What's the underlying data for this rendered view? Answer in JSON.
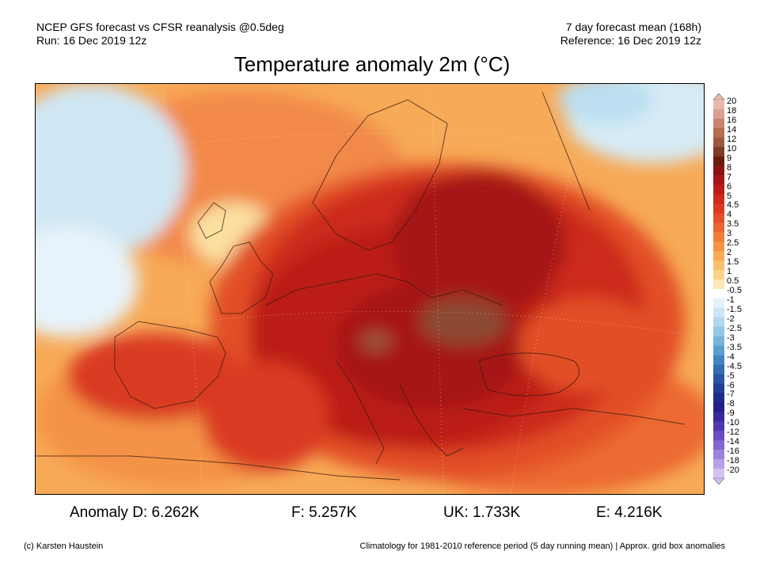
{
  "header": {
    "left_line1": "NCEP GFS forecast vs CFSR reanalysis @0.5deg",
    "left_line2": "Run: 16 Dec 2019 12z",
    "right_line1": "7 day forecast mean (168h)",
    "right_line2": "Reference: 16 Dec 2019 12z"
  },
  "title": "Temperature anomaly 2m (°C)",
  "anomalies": {
    "D": "Anomaly D: 6.262K",
    "F": "F: 5.257K",
    "UK": "UK: 1.733K",
    "E": "E: 4.216K"
  },
  "footer": {
    "credit": "(c) Karsten Haustein",
    "note": "Climatology for 1981-2010 reference period (5 day running mean) | Approx. grid box anomalies"
  },
  "legend": {
    "levels": [
      {
        "label": "20",
        "color": "#e8b8ac"
      },
      {
        "label": "18",
        "color": "#d9a090"
      },
      {
        "label": "16",
        "color": "#c8846f"
      },
      {
        "label": "14",
        "color": "#b56d54"
      },
      {
        "label": "12",
        "color": "#9c573f"
      },
      {
        "label": "10",
        "color": "#7e3d26"
      },
      {
        "label": "9",
        "color": "#6b1a10"
      },
      {
        "label": "8",
        "color": "#8c1212"
      },
      {
        "label": "7",
        "color": "#a61616"
      },
      {
        "label": "6",
        "color": "#bb1e18"
      },
      {
        "label": "5",
        "color": "#cc2a1e"
      },
      {
        "label": "4.5",
        "color": "#d93a22"
      },
      {
        "label": "4",
        "color": "#e24f28"
      },
      {
        "label": "3.5",
        "color": "#ea6530"
      },
      {
        "label": "3",
        "color": "#f07c3a"
      },
      {
        "label": "2.5",
        "color": "#f49346"
      },
      {
        "label": "2",
        "color": "#f7aa57"
      },
      {
        "label": "1.5",
        "color": "#f9c06d"
      },
      {
        "label": "1",
        "color": "#fad588"
      },
      {
        "label": "0.5",
        "color": "#fbe8b5"
      },
      {
        "label": "-0.5",
        "color": "#ffffff"
      },
      {
        "label": "-1",
        "color": "#e3f1f9"
      },
      {
        "label": "-1.5",
        "color": "#cbe6f5"
      },
      {
        "label": "-2",
        "color": "#b0d8ef"
      },
      {
        "label": "-2.5",
        "color": "#93c8e6"
      },
      {
        "label": "-3",
        "color": "#75b5dc"
      },
      {
        "label": "-3.5",
        "color": "#5a9fcf"
      },
      {
        "label": "-4",
        "color": "#4285c0"
      },
      {
        "label": "-4.5",
        "color": "#336cb0"
      },
      {
        "label": "-5",
        "color": "#2a55a3"
      },
      {
        "label": "-6",
        "color": "#233e95"
      },
      {
        "label": "-7",
        "color": "#1f2b8a"
      },
      {
        "label": "-8",
        "color": "#241f88"
      },
      {
        "label": "-9",
        "color": "#3a2a99"
      },
      {
        "label": "-10",
        "color": "#5138ad"
      },
      {
        "label": "-12",
        "color": "#6a4dc0"
      },
      {
        "label": "-14",
        "color": "#8466d0"
      },
      {
        "label": "-16",
        "color": "#9e82dd"
      },
      {
        "label": "-18",
        "color": "#b8a1e8"
      },
      {
        "label": "-20",
        "color": "#d2c2f2"
      }
    ]
  }
}
